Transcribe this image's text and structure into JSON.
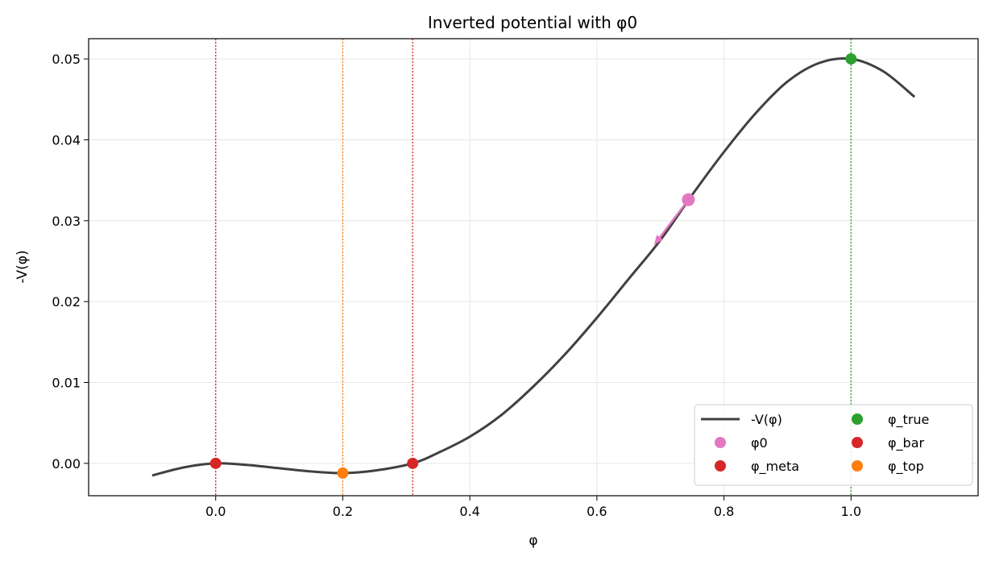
{
  "chart_data": {
    "type": "line",
    "title": "Inverted potential with φ0",
    "xlabel": "φ",
    "ylabel": "-V(φ)",
    "xlim": [
      -0.2,
      1.2
    ],
    "ylim": [
      -0.004,
      0.0525
    ],
    "xticks": [
      0.0,
      0.2,
      0.4,
      0.6,
      0.8,
      1.0
    ],
    "xtick_labels": [
      "0.0",
      "0.2",
      "0.4",
      "0.6",
      "0.8",
      "1.0"
    ],
    "yticks": [
      0.0,
      0.01,
      0.02,
      0.03,
      0.04,
      0.05
    ],
    "ytick_labels": [
      "0.00",
      "0.01",
      "0.02",
      "0.03",
      "0.04",
      "0.05"
    ],
    "grid": true,
    "legend_position": "lower-right",
    "curve": {
      "name": "-V(φ)",
      "color": "#404040",
      "x": [
        -0.1,
        -0.05,
        0.0,
        0.05,
        0.1,
        0.15,
        0.2,
        0.25,
        0.31,
        0.35,
        0.4,
        0.45,
        0.5,
        0.55,
        0.6,
        0.65,
        0.7,
        0.75,
        0.8,
        0.85,
        0.9,
        0.95,
        1.0,
        1.05,
        1.1
      ],
      "y": [
        -0.0015,
        -0.0005,
        0.0,
        -0.0002,
        -0.0006,
        -0.001,
        -0.0012,
        -0.0009,
        0.0,
        0.0013,
        0.0033,
        0.006,
        0.0095,
        0.0135,
        0.018,
        0.0228,
        0.0276,
        0.0332,
        0.0385,
        0.0433,
        0.0472,
        0.0495,
        0.05,
        0.0485,
        0.0453
      ]
    },
    "points": [
      {
        "name": "φ0",
        "x": 0.744,
        "y": 0.0326,
        "color": "#e377c2"
      },
      {
        "name": "φ_meta",
        "x": 0.0,
        "y": 0.0,
        "color": "#d62728"
      },
      {
        "name": "φ_true",
        "x": 1.0,
        "y": 0.05,
        "color": "#2ca02c"
      },
      {
        "name": "φ_bar",
        "x": 0.31,
        "y": 0.0,
        "color": "#d62728"
      },
      {
        "name": "φ_top",
        "x": 0.2,
        "y": -0.0012,
        "color": "#ff7f0e"
      }
    ],
    "vlines": [
      {
        "x": 0.0,
        "color": "#d62728"
      },
      {
        "x": 0.2,
        "color": "#ff7f0e"
      },
      {
        "x": 0.31,
        "color": "#d62728"
      },
      {
        "x": 1.0,
        "color": "#2ca02c"
      }
    ],
    "arrow": {
      "from": [
        0.744,
        0.0326
      ],
      "to": [
        0.69,
        0.027
      ],
      "color": "#e377c2"
    },
    "legend": [
      {
        "label": "-V(φ)",
        "kind": "line",
        "color": "#404040"
      },
      {
        "label": "φ_true",
        "kind": "marker",
        "color": "#2ca02c"
      },
      {
        "label": "φ0",
        "kind": "marker",
        "color": "#e377c2"
      },
      {
        "label": "φ_bar",
        "kind": "marker",
        "color": "#d62728"
      },
      {
        "label": "φ_meta",
        "kind": "marker",
        "color": "#d62728"
      },
      {
        "label": "φ_top",
        "kind": "marker",
        "color": "#ff7f0e"
      }
    ]
  }
}
